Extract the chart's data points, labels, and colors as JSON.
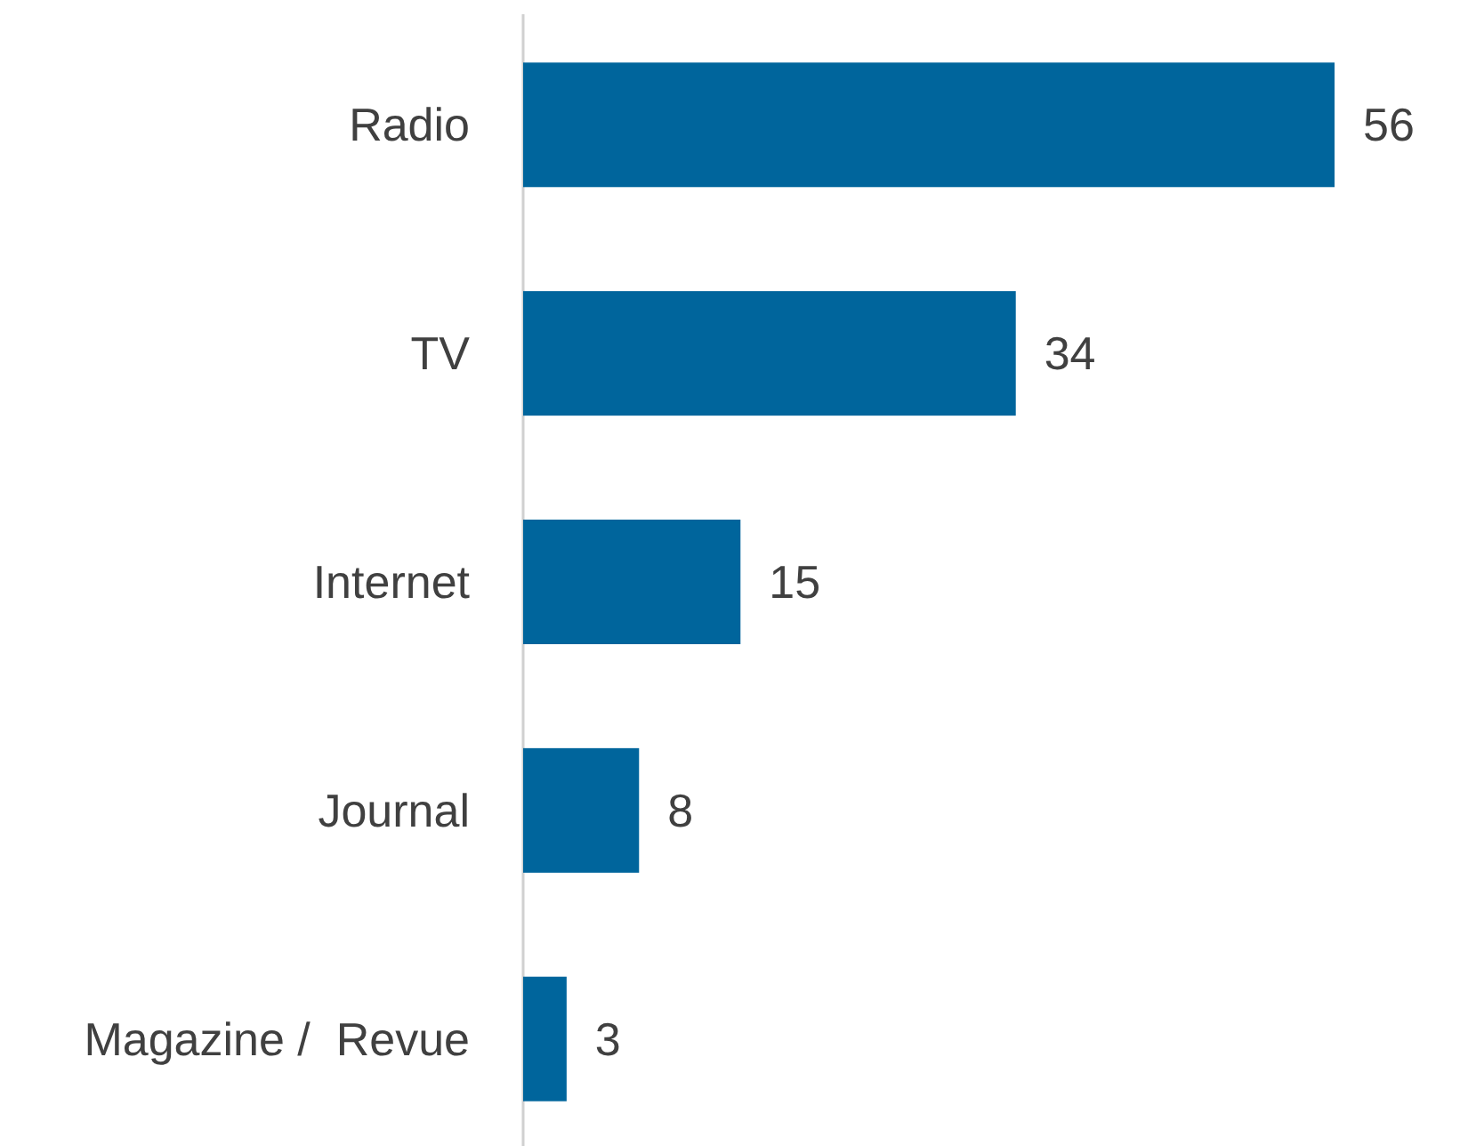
{
  "chart_data": {
    "type": "bar",
    "orientation": "horizontal",
    "categories": [
      "Radio",
      "TV",
      "Internet",
      "Journal",
      "Magazine /  Revue"
    ],
    "values": [
      56,
      34,
      15,
      8,
      3
    ],
    "color": "#00659c",
    "data_labels": true
  }
}
